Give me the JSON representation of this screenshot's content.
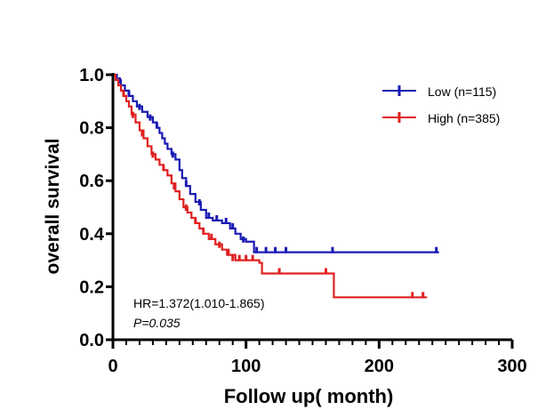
{
  "chart_data": {
    "type": "line",
    "title": "",
    "xlabel": "Follow up( month)",
    "ylabel": "overall survival",
    "xlim": [
      0,
      300
    ],
    "ylim": [
      0,
      1.0
    ],
    "x_ticks": [
      "0",
      "100",
      "200",
      "300"
    ],
    "y_ticks": [
      "0.0",
      "0.2",
      "0.4",
      "0.6",
      "0.8",
      "1.0"
    ],
    "grid": false,
    "legend_position": "top-right",
    "annotations": {
      "hr": "HR=1.372(1.010-1.865)",
      "p": "P=0.035"
    },
    "series": [
      {
        "name": "Low (n=115)",
        "color": "#1a1ab4",
        "steps": [
          [
            0,
            1.0
          ],
          [
            3,
            0.98
          ],
          [
            6,
            0.96
          ],
          [
            9,
            0.94
          ],
          [
            12,
            0.92
          ],
          [
            15,
            0.9
          ],
          [
            18,
            0.88
          ],
          [
            22,
            0.86
          ],
          [
            26,
            0.84
          ],
          [
            30,
            0.82
          ],
          [
            33,
            0.8
          ],
          [
            35,
            0.78
          ],
          [
            37,
            0.76
          ],
          [
            39,
            0.74
          ],
          [
            41,
            0.72
          ],
          [
            44,
            0.7
          ],
          [
            47,
            0.68
          ],
          [
            50,
            0.64
          ],
          [
            52,
            0.61
          ],
          [
            55,
            0.58
          ],
          [
            58,
            0.55
          ],
          [
            62,
            0.52
          ],
          [
            66,
            0.49
          ],
          [
            70,
            0.46
          ],
          [
            75,
            0.45
          ],
          [
            82,
            0.44
          ],
          [
            88,
            0.42
          ],
          [
            92,
            0.4
          ],
          [
            96,
            0.38
          ],
          [
            100,
            0.37
          ],
          [
            106,
            0.33
          ],
          [
            245,
            0.33
          ]
        ],
        "censors": [
          [
            5,
            0.97
          ],
          [
            12,
            0.92
          ],
          [
            20,
            0.87
          ],
          [
            28,
            0.83
          ],
          [
            33,
            0.8
          ],
          [
            45,
            0.69
          ],
          [
            55,
            0.58
          ],
          [
            65,
            0.51
          ],
          [
            72,
            0.46
          ],
          [
            78,
            0.45
          ],
          [
            85,
            0.44
          ],
          [
            90,
            0.42
          ],
          [
            98,
            0.37
          ],
          [
            108,
            0.33
          ],
          [
            115,
            0.33
          ],
          [
            122,
            0.33
          ],
          [
            130,
            0.33
          ],
          [
            165,
            0.33
          ],
          [
            243,
            0.33
          ]
        ]
      },
      {
        "name": "High (n=385)",
        "color": "#e02020",
        "steps": [
          [
            0,
            1.0
          ],
          [
            2,
            0.98
          ],
          [
            4,
            0.96
          ],
          [
            6,
            0.94
          ],
          [
            8,
            0.92
          ],
          [
            10,
            0.9
          ],
          [
            12,
            0.88
          ],
          [
            14,
            0.85
          ],
          [
            17,
            0.82
          ],
          [
            20,
            0.79
          ],
          [
            23,
            0.76
          ],
          [
            26,
            0.73
          ],
          [
            29,
            0.7
          ],
          [
            32,
            0.68
          ],
          [
            35,
            0.66
          ],
          [
            38,
            0.64
          ],
          [
            41,
            0.62
          ],
          [
            44,
            0.59
          ],
          [
            47,
            0.56
          ],
          [
            50,
            0.53
          ],
          [
            53,
            0.5
          ],
          [
            56,
            0.48
          ],
          [
            59,
            0.46
          ],
          [
            62,
            0.44
          ],
          [
            65,
            0.42
          ],
          [
            68,
            0.4
          ],
          [
            72,
            0.38
          ],
          [
            77,
            0.36
          ],
          [
            82,
            0.34
          ],
          [
            87,
            0.32
          ],
          [
            92,
            0.3
          ],
          [
            110,
            0.29
          ],
          [
            112,
            0.25
          ],
          [
            165,
            0.25
          ],
          [
            166,
            0.16
          ],
          [
            236,
            0.16
          ]
        ],
        "censors": [
          [
            8,
            0.92
          ],
          [
            15,
            0.84
          ],
          [
            22,
            0.77
          ],
          [
            30,
            0.69
          ],
          [
            38,
            0.64
          ],
          [
            46,
            0.57
          ],
          [
            55,
            0.49
          ],
          [
            62,
            0.44
          ],
          [
            68,
            0.4
          ],
          [
            74,
            0.38
          ],
          [
            80,
            0.35
          ],
          [
            86,
            0.32
          ],
          [
            90,
            0.3
          ],
          [
            95,
            0.3
          ],
          [
            100,
            0.3
          ],
          [
            105,
            0.3
          ],
          [
            125,
            0.25
          ],
          [
            160,
            0.25
          ],
          [
            225,
            0.16
          ],
          [
            233,
            0.16
          ]
        ]
      }
    ]
  }
}
